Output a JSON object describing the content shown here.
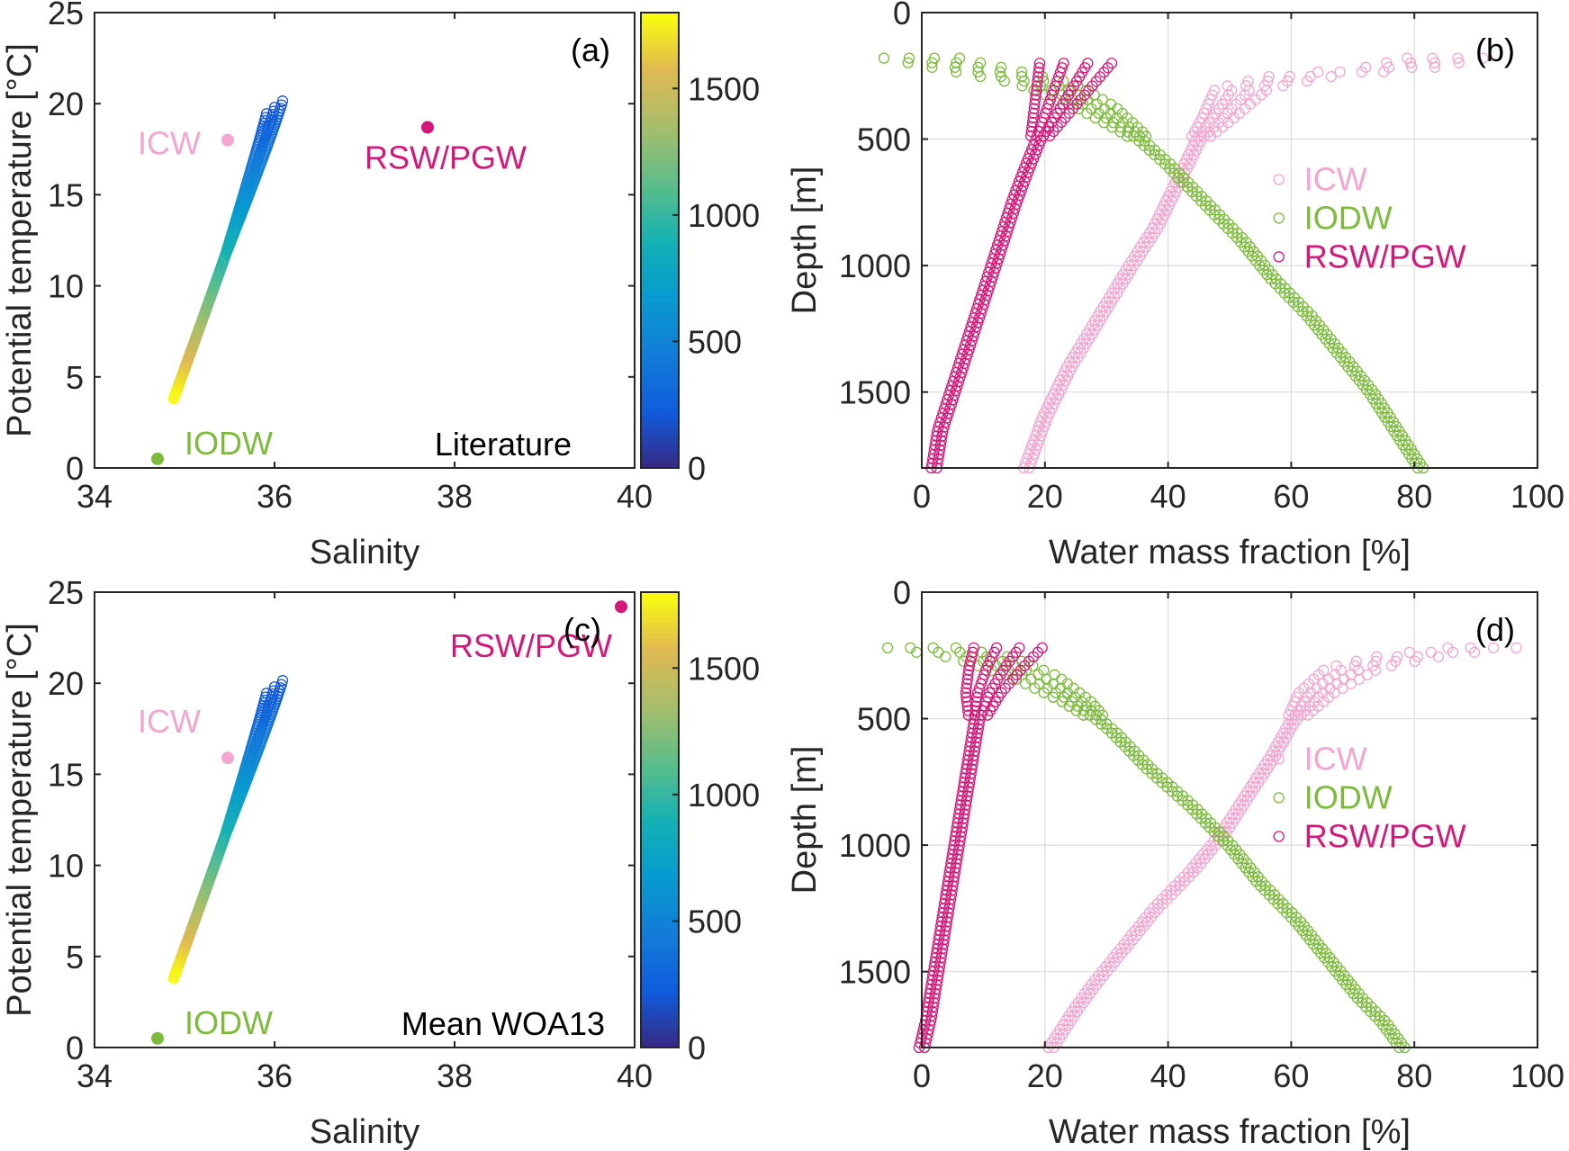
{
  "chart_data": [
    {
      "id": "a",
      "type": "scatter",
      "panel_label": "(a)",
      "xlabel": "Salinity",
      "ylabel": "Potential temperature [°C]",
      "xlim": [
        34,
        40
      ],
      "ylim": [
        0,
        25
      ],
      "xticks": [
        "34",
        "36",
        "38",
        "40"
      ],
      "yticks": [
        "0",
        "5",
        "10",
        "15",
        "20",
        "25"
      ],
      "annotation": "Literature",
      "colorbar": {
        "ticks": [
          "0",
          "500",
          "1000",
          "1500"
        ],
        "range": [
          0,
          1800
        ],
        "colormap": "parula"
      },
      "profile": {
        "s_min": 34.88,
        "s_max": 36.0,
        "t_min": 3.8,
        "t_max": 19.8,
        "depth_min": 180,
        "depth_max": 1800
      },
      "end_members": [
        {
          "name": "ICW",
          "salinity": 35.48,
          "temperature": 18.0,
          "color": "#f2a6d0"
        },
        {
          "name": "RSW/PGW",
          "salinity": 37.7,
          "temperature": 18.7,
          "color": "#d4187a"
        },
        {
          "name": "IODW",
          "salinity": 34.7,
          "temperature": 0.5,
          "color": "#7cbb3c"
        }
      ]
    },
    {
      "id": "b",
      "type": "scatter",
      "panel_label": "(b)",
      "xlabel": "Water mass fraction [%]",
      "ylabel": "Depth [m]",
      "xlim": [
        0,
        100
      ],
      "ylim": [
        0,
        1800
      ],
      "y_reversed": true,
      "grid": true,
      "xticks": [
        "0",
        "20",
        "40",
        "60",
        "80",
        "100"
      ],
      "yticks": [
        "0",
        "500",
        "1000",
        "1500"
      ],
      "legend": {
        "position": "right",
        "entries": [
          "ICW",
          "IODW",
          "RSW/PGW"
        ]
      },
      "series": [
        {
          "name": "ICW",
          "color": "#f2a6d0",
          "points": [
            [
              85,
              180
            ],
            [
              77,
              220
            ],
            [
              62,
              250
            ],
            [
              52,
              300
            ],
            [
              48,
              420
            ],
            [
              45,
              500
            ],
            [
              43,
              600
            ],
            [
              41,
              700
            ],
            [
              38,
              850
            ],
            [
              34,
              1000
            ],
            [
              29,
              1200
            ],
            [
              24,
              1400
            ],
            [
              20,
              1600
            ],
            [
              17,
              1800
            ]
          ]
        },
        {
          "name": "IODW",
          "color": "#7cbb3c",
          "points": [
            [
              0,
              180
            ],
            [
              10,
              230
            ],
            [
              20,
              280
            ],
            [
              28,
              370
            ],
            [
              34,
              470
            ],
            [
              40,
              600
            ],
            [
              46,
              750
            ],
            [
              52,
              900
            ],
            [
              57,
              1050
            ],
            [
              63,
              1200
            ],
            [
              68,
              1350
            ],
            [
              73,
              1500
            ],
            [
              77,
              1650
            ],
            [
              81,
              1800
            ]
          ]
        },
        {
          "name": "RSW/PGW",
          "color": "#d4187a",
          "points": [
            [
              25,
              200
            ],
            [
              22,
              350
            ],
            [
              20,
              450
            ],
            [
              19,
              500
            ],
            [
              17,
              620
            ],
            [
              15,
              750
            ],
            [
              13,
              900
            ],
            [
              11,
              1050
            ],
            [
              9,
              1200
            ],
            [
              7,
              1350
            ],
            [
              5,
              1500
            ],
            [
              3,
              1650
            ],
            [
              2,
              1800
            ]
          ]
        }
      ]
    },
    {
      "id": "c",
      "type": "scatter",
      "panel_label": "(c)",
      "xlabel": "Salinity",
      "ylabel": "Potential temperature [°C]",
      "xlim": [
        34,
        40
      ],
      "ylim": [
        0,
        25
      ],
      "xticks": [
        "34",
        "36",
        "38",
        "40"
      ],
      "yticks": [
        "0",
        "5",
        "10",
        "15",
        "20",
        "25"
      ],
      "annotation": "Mean WOA13",
      "colorbar": {
        "ticks": [
          "0",
          "500",
          "1000",
          "1500"
        ],
        "range": [
          0,
          1800
        ],
        "colormap": "parula"
      },
      "profile": {
        "s_min": 34.88,
        "s_max": 36.0,
        "t_min": 3.8,
        "t_max": 19.8,
        "depth_min": 180,
        "depth_max": 1800
      },
      "end_members": [
        {
          "name": "ICW",
          "salinity": 35.48,
          "temperature": 15.9,
          "color": "#f2a6d0"
        },
        {
          "name": "RSW/PGW",
          "salinity": 39.85,
          "temperature": 24.2,
          "color": "#d4187a"
        },
        {
          "name": "IODW",
          "salinity": 34.7,
          "temperature": 0.5,
          "color": "#7cbb3c"
        }
      ]
    },
    {
      "id": "d",
      "type": "scatter",
      "panel_label": "(d)",
      "xlabel": "Water mass fraction [%]",
      "ylabel": "Depth [m]",
      "xlim": [
        0,
        100
      ],
      "ylim": [
        0,
        1800
      ],
      "y_reversed": true,
      "grid": true,
      "xticks": [
        "0",
        "20",
        "40",
        "60",
        "80",
        "100"
      ],
      "yticks": [
        "0",
        "500",
        "1000",
        "1500"
      ],
      "legend": {
        "position": "right",
        "entries": [
          "ICW",
          "IODW",
          "RSW/PGW"
        ]
      },
      "series": [
        {
          "name": "ICW",
          "color": "#f2a6d0",
          "points": [
            [
              91,
              220
            ],
            [
              80,
              250
            ],
            [
              70,
              300
            ],
            [
              64,
              400
            ],
            [
              60,
              520
            ],
            [
              57,
              650
            ],
            [
              53,
              800
            ],
            [
              49,
              950
            ],
            [
              44,
              1100
            ],
            [
              38,
              1250
            ],
            [
              33,
              1400
            ],
            [
              28,
              1550
            ],
            [
              25,
              1650
            ],
            [
              21,
              1800
            ]
          ]
        },
        {
          "name": "IODW",
          "color": "#7cbb3c",
          "points": [
            [
              0,
              220
            ],
            [
              10,
              260
            ],
            [
              18,
              330
            ],
            [
              25,
              430
            ],
            [
              31,
              550
            ],
            [
              37,
              700
            ],
            [
              44,
              850
            ],
            [
              50,
              1000
            ],
            [
              55,
              1150
            ],
            [
              61,
              1300
            ],
            [
              66,
              1450
            ],
            [
              71,
              1600
            ],
            [
              75,
              1700
            ],
            [
              78,
              1800
            ]
          ]
        },
        {
          "name": "RSW/PGW",
          "color": "#d4187a",
          "points": [
            [
              14,
              220
            ],
            [
              12,
              300
            ],
            [
              10,
              400
            ],
            [
              9,
              500
            ],
            [
              8,
              650
            ],
            [
              7,
              800
            ],
            [
              6,
              950
            ],
            [
              5,
              1100
            ],
            [
              4,
              1250
            ],
            [
              3,
              1400
            ],
            [
              2,
              1550
            ],
            [
              1,
              1700
            ],
            [
              0,
              1800
            ]
          ]
        }
      ]
    }
  ]
}
